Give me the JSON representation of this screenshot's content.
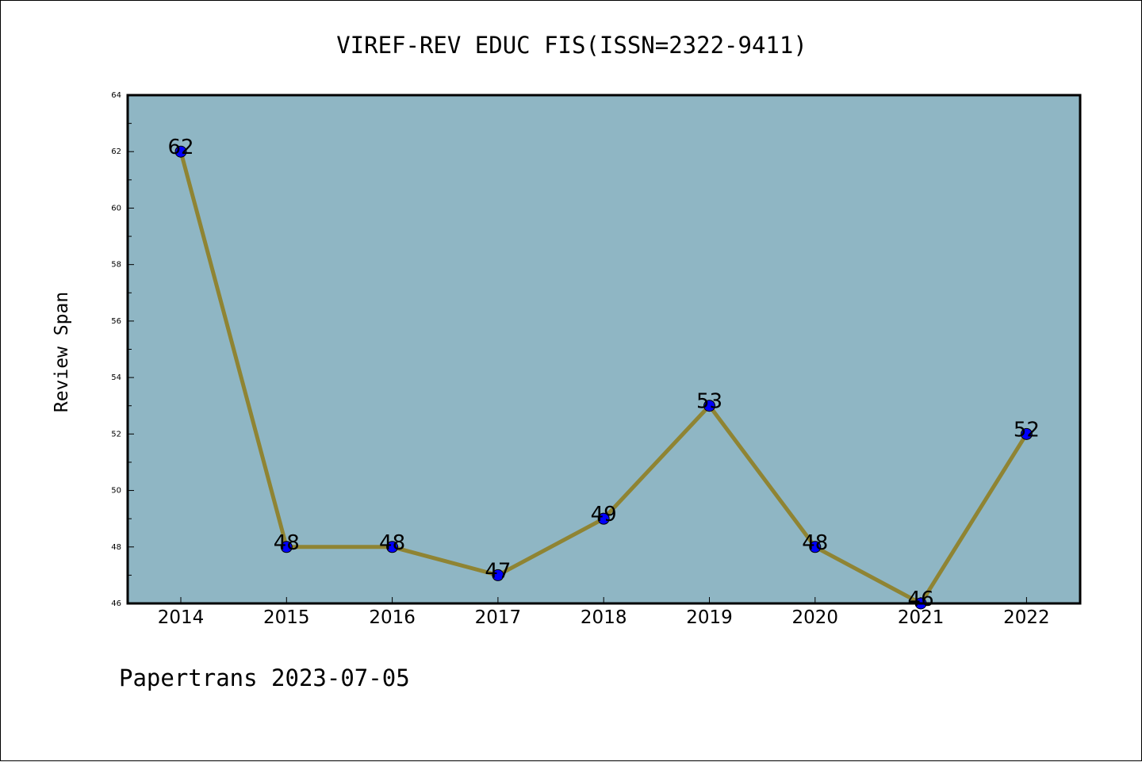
{
  "footer": {
    "text": "Papertrans 2023-07-05"
  },
  "chart_data": {
    "type": "line",
    "title": "VIREF-REV EDUC FIS(ISSN=2322-9411)",
    "xlabel": "",
    "ylabel": "Review Span",
    "categories": [
      "2014",
      "2015",
      "2016",
      "2017",
      "2018",
      "2019",
      "2020",
      "2021",
      "2022"
    ],
    "values": [
      62,
      48,
      48,
      47,
      49,
      53,
      48,
      46,
      52
    ],
    "data_labels": [
      "62",
      "48",
      "48",
      "47",
      "49",
      "53",
      "48",
      "46",
      "52"
    ],
    "ylim": [
      46,
      64
    ],
    "yticks": [
      "46",
      "48",
      "50",
      "52",
      "54",
      "56",
      "58",
      "60",
      "62",
      "64"
    ],
    "grid": false,
    "legend": "none",
    "colors": {
      "plot_background": "#8fb6c4",
      "line": "#8f8433",
      "marker": "#0000ff",
      "axes": "#000000"
    }
  }
}
